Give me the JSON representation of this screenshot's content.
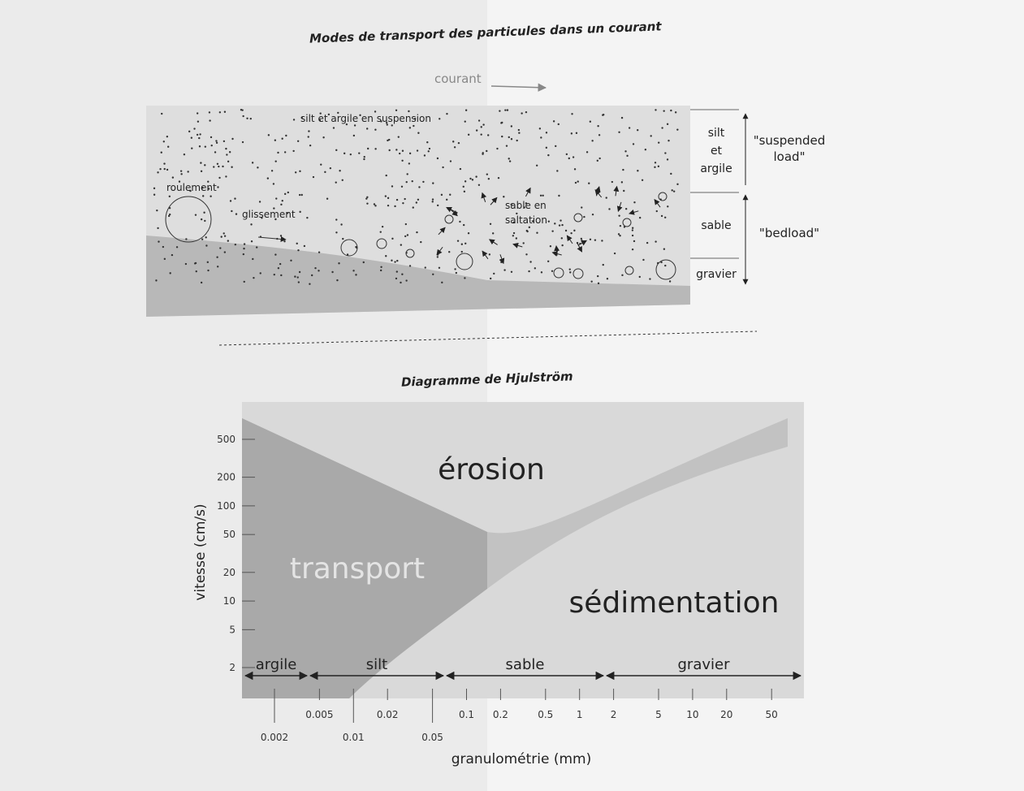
{
  "top_figure": {
    "title": "Modes de transport des particules dans un courant",
    "current": "courant",
    "suspension": "silt et argile en suspension",
    "rolling": "roulement",
    "sliding": "glissement",
    "saltation": [
      "sable en",
      "saltation"
    ],
    "layers": [
      [
        "silt",
        "et",
        "argile"
      ],
      [
        "sable"
      ],
      [
        "gravier"
      ]
    ],
    "loads": [
      [
        "\"suspended",
        "load\""
      ],
      [
        "\"bedload\""
      ]
    ]
  },
  "bottom_figure": {
    "title": "Diagramme de Hjulström",
    "y_label": "vitesse (cm/s)",
    "x_label": "granulométrie (mm)",
    "yticks": [
      2,
      5,
      10,
      20,
      50,
      100,
      200,
      500
    ],
    "xticks": [
      0.002,
      0.005,
      0.01,
      0.02,
      0.05,
      0.1,
      0.2,
      0.5,
      1,
      2,
      5,
      10,
      20,
      50
    ],
    "regions": [
      "érosion",
      "transport",
      "sédimentation"
    ],
    "classes": [
      "argile",
      "silt",
      "sable",
      "gravier"
    ]
  }
}
